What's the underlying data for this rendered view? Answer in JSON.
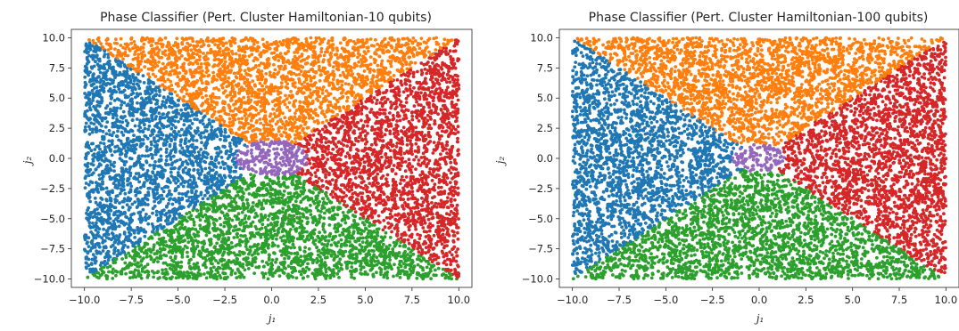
{
  "chart_data": [
    {
      "type": "scatter",
      "title": "Phase Classifier (Pert. Cluster Hamiltonian-10 qubits)",
      "xlabel": "j₁",
      "ylabel": "j₂",
      "xlim": [
        -10.7,
        10.7
      ],
      "ylim": [
        -10.7,
        10.7
      ],
      "xticks": [
        "−10.0",
        "−7.5",
        "−5.0",
        "−2.5",
        "0.0",
        "2.5",
        "5.0",
        "7.5",
        "10.0"
      ],
      "yticks": [
        "10.0",
        "7.5",
        "5.0",
        "2.5",
        "0.0",
        "−2.5",
        "−5.0",
        "−7.5",
        "−10.0"
      ],
      "grid": false,
      "legend": "none",
      "point_count": 9000,
      "center_radius": 1.55,
      "series": [
        {
          "region": "left (x < −|y|)",
          "color": "#1f77b4"
        },
        {
          "region": "top (y > |x|)",
          "color": "#ff7f0e"
        },
        {
          "region": "bottom (y < −|x|)",
          "color": "#2ca02c"
        },
        {
          "region": "right (x > |y|)",
          "color": "#d62728"
        },
        {
          "region": "center (near origin)",
          "color": "#9467bd"
        }
      ]
    },
    {
      "type": "scatter",
      "title": "Phase Classifier (Pert. Cluster Hamiltonian-100 qubits)",
      "xlabel": "j₁",
      "ylabel": "j₂",
      "xlim": [
        -10.7,
        10.7
      ],
      "ylim": [
        -10.7,
        10.7
      ],
      "xticks": [
        "−10.0",
        "−7.5",
        "−5.0",
        "−2.5",
        "0.0",
        "2.5",
        "5.0",
        "7.5",
        "10.0"
      ],
      "yticks": [
        "10.0",
        "7.5",
        "5.0",
        "2.5",
        "0.0",
        "−2.5",
        "−5.0",
        "−7.5",
        "−10.0"
      ],
      "grid": false,
      "legend": "none",
      "point_count": 9000,
      "center_radius": 1.15,
      "series": [
        {
          "region": "left (x < −|y|)",
          "color": "#1f77b4"
        },
        {
          "region": "top (y > |x|)",
          "color": "#ff7f0e"
        },
        {
          "region": "bottom (y < −|x|)",
          "color": "#2ca02c"
        },
        {
          "region": "right (x > |y|)",
          "color": "#d62728"
        },
        {
          "region": "center (near origin)",
          "color": "#9467bd"
        }
      ]
    }
  ]
}
